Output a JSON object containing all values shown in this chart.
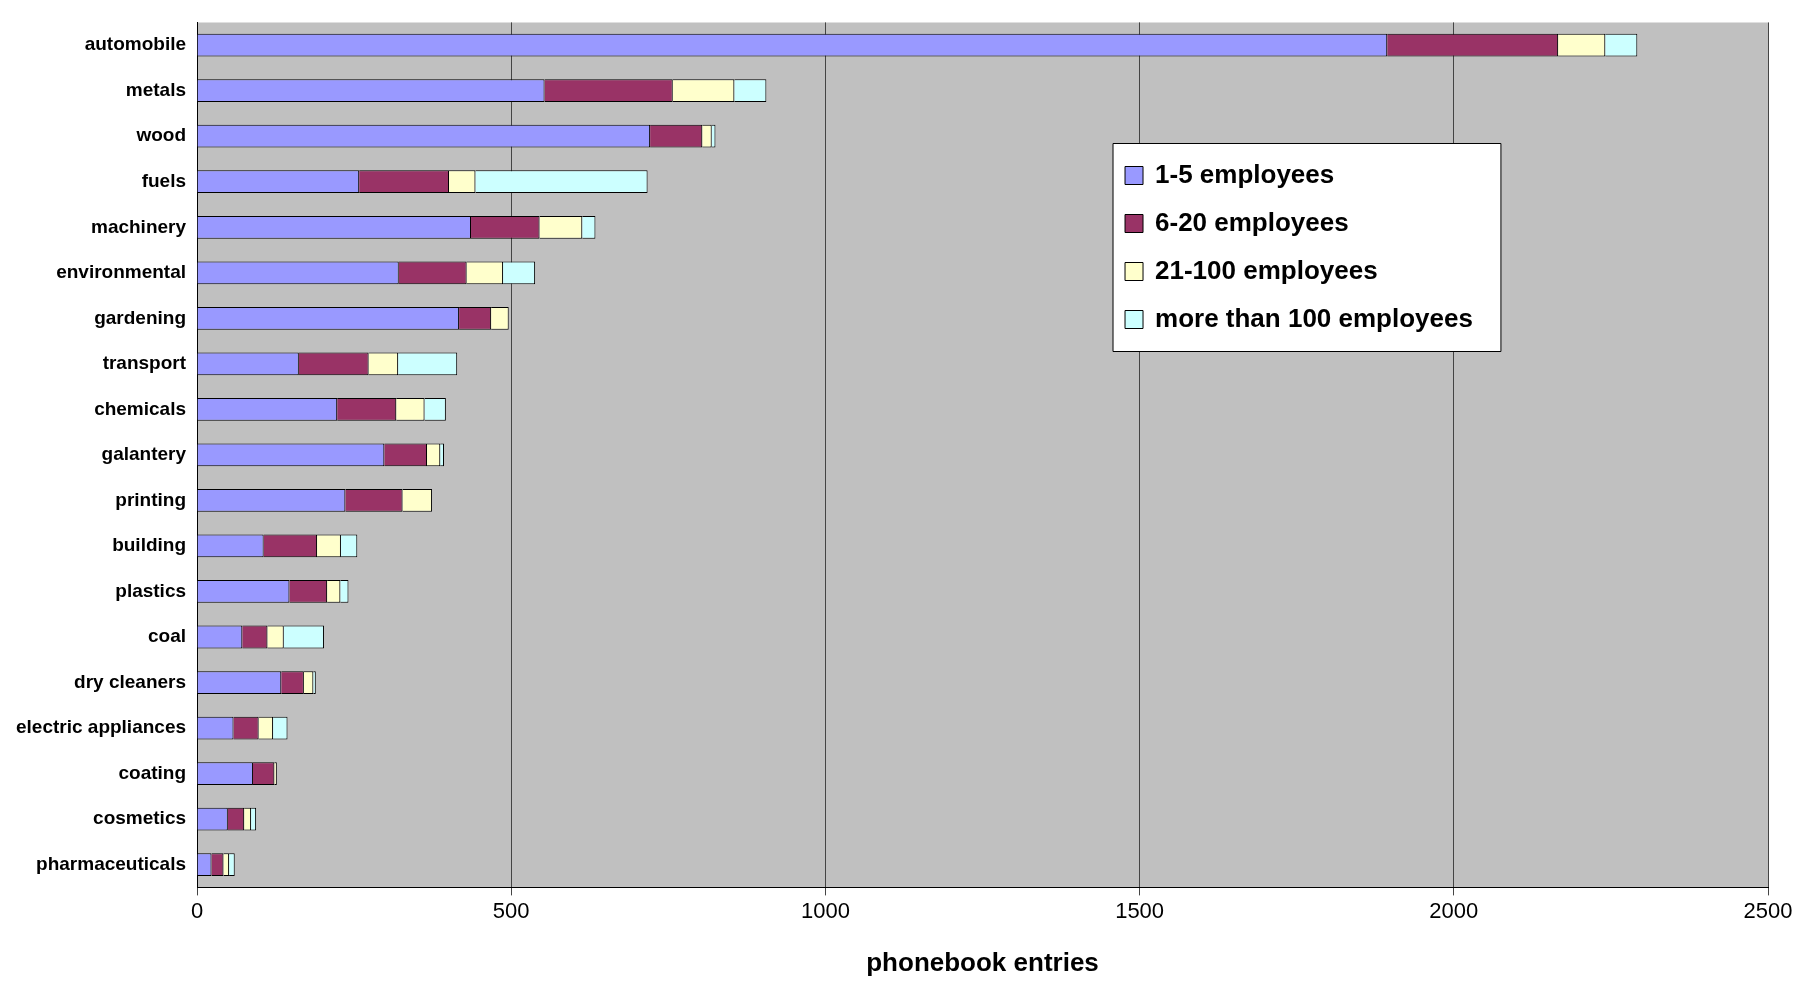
{
  "chart_data": {
    "type": "bar",
    "orientation": "horizontal",
    "stacked": true,
    "xlabel": "phonebook entries",
    "categories": [
      "automobile",
      "metals",
      "wood",
      "fuels",
      "machinery",
      "environmental",
      "gardening",
      "transport",
      "chemicals",
      "galantery",
      "printing",
      "building",
      "plastics",
      "coal",
      "dry cleaners",
      "electric appliances",
      "coating",
      "cosmetics",
      "pharmaceuticals"
    ],
    "series": [
      {
        "name": "1-5 employees",
        "color": "#9999ff",
        "values": [
          1894,
          553,
          721,
          258,
          436,
          321,
          417,
          162,
          223,
          298,
          236,
          106,
          147,
          72,
          134,
          58,
          89,
          49,
          23
        ]
      },
      {
        "name": "6-20 employees",
        "color": "#993366",
        "values": [
          272,
          204,
          83,
          143,
          109,
          108,
          51,
          111,
          94,
          68,
          91,
          85,
          60,
          40,
          36,
          40,
          34,
          26,
          19
        ]
      },
      {
        "name": "21-100 employees",
        "color": "#ffffcc",
        "values": [
          75,
          98,
          15,
          42,
          68,
          58,
          28,
          47,
          45,
          21,
          47,
          38,
          21,
          26,
          15,
          23,
          4,
          11,
          9
        ]
      },
      {
        "name": "more than 100 employees",
        "color": "#ccffff",
        "values": [
          51,
          51,
          6,
          274,
          21,
          51,
          null,
          94,
          34,
          6,
          null,
          26,
          13,
          64,
          4,
          23,
          null,
          8,
          9
        ]
      }
    ],
    "xlim": [
      0,
      2500
    ],
    "xticks": [
      0,
      500,
      1000,
      1500,
      2000,
      2500
    ],
    "grid": "x",
    "legend": "top right"
  }
}
